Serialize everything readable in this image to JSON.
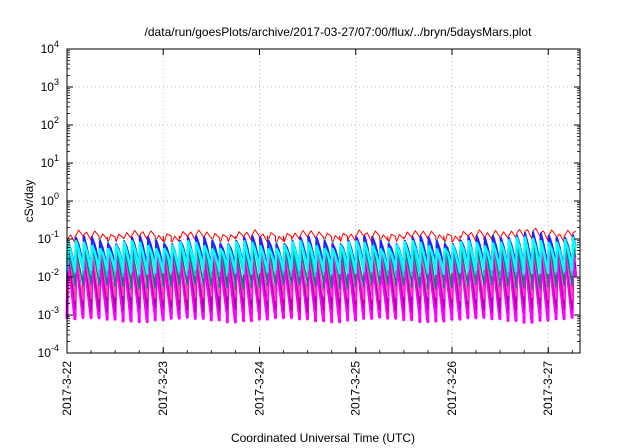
{
  "chart_data": {
    "type": "line",
    "title": "/data/run/goesPlots/archive/2017-03-27/07:00/flux/../bryn/5daysMars.plot",
    "xlabel": "Coordinated Universal Time (UTC)",
    "ylabel": "cSv/day",
    "yscale": "log",
    "ylim": [
      0.0001,
      10000
    ],
    "xlim": [
      0,
      5.33
    ],
    "xticks": [
      {
        "x": 0,
        "label": "2017-3-22"
      },
      {
        "x": 1,
        "label": "2017-3-23"
      },
      {
        "x": 2,
        "label": "2017-3-24"
      },
      {
        "x": 3,
        "label": "2017-3-25"
      },
      {
        "x": 4,
        "label": "2017-3-26"
      },
      {
        "x": 5,
        "label": "2017-3-27"
      }
    ],
    "yticks": [
      {
        "exp": "-4",
        "value": 0.0001
      },
      {
        "exp": "-3",
        "value": 0.001
      },
      {
        "exp": "-2",
        "value": 0.01
      },
      {
        "exp": "-1",
        "value": 0.1
      },
      {
        "exp": "0",
        "value": 1
      },
      {
        "exp": "1",
        "value": 10
      },
      {
        "exp": "2",
        "value": 100
      },
      {
        "exp": "3",
        "value": 1000
      },
      {
        "exp": "4",
        "value": 10000
      }
    ],
    "ytick_base": "10",
    "grid": true,
    "cycle_days": 0.0833,
    "series": [
      {
        "color": "#ff0000",
        "peak": 0.105,
        "trough": 0.1,
        "width": 1
      },
      {
        "color": "#ff00ff",
        "peak": 0.04,
        "trough": 0.0008,
        "width": 3
      },
      {
        "color": "#b000b0",
        "peak": 0.05,
        "trough": 0.0015,
        "width": 1.5
      },
      {
        "color": "#ff40c0",
        "peak": 0.06,
        "trough": 0.003,
        "width": 1.5
      },
      {
        "color": "#008080",
        "peak": 0.07,
        "trough": 0.006,
        "width": 1.5
      },
      {
        "color": "#00d0d0",
        "peak": 0.085,
        "trough": 0.012,
        "width": 1.5
      },
      {
        "color": "#2020ff",
        "peak": 0.095,
        "trough": 0.02,
        "width": 2
      },
      {
        "color": "#00ffff",
        "peak": 0.07,
        "trough": 0.015,
        "width": 2.5
      }
    ]
  }
}
